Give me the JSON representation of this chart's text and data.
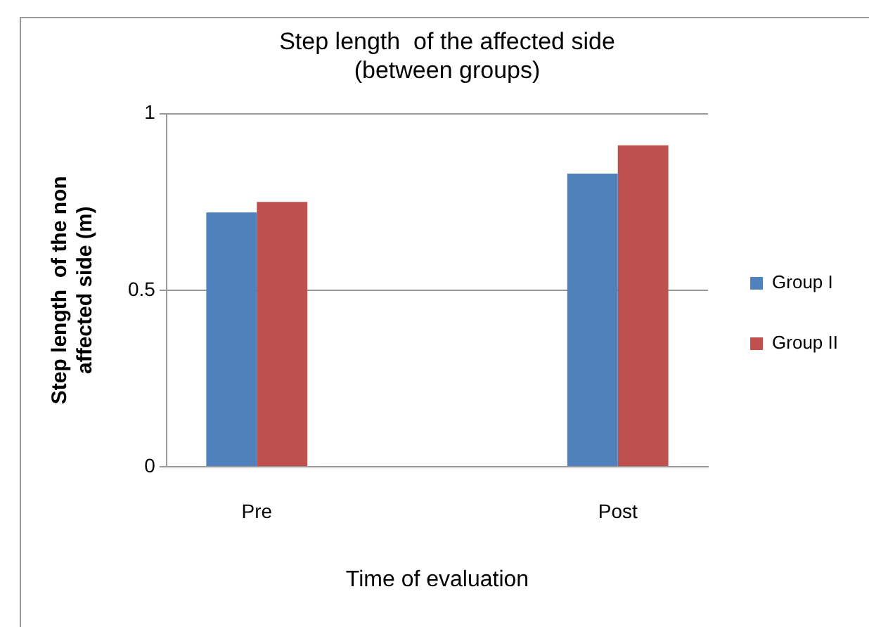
{
  "chart_data": {
    "type": "bar",
    "title": "Step length  of the affected side (between groups)",
    "xlabel": "Time of evaluation",
    "ylabel": "Step length  of the non affected side (m)",
    "categories": [
      "Pre",
      null,
      "Post"
    ],
    "series": [
      {
        "name": "Group I",
        "color": "#4f81bd",
        "values": [
          0.72,
          null,
          0.83
        ]
      },
      {
        "name": "Group II",
        "color": "#c0504d",
        "values": [
          0.75,
          null,
          0.91
        ]
      }
    ],
    "ylim": [
      0,
      1
    ],
    "yticks": [
      0,
      0.5,
      1
    ],
    "grid": "y",
    "legend": "right"
  }
}
